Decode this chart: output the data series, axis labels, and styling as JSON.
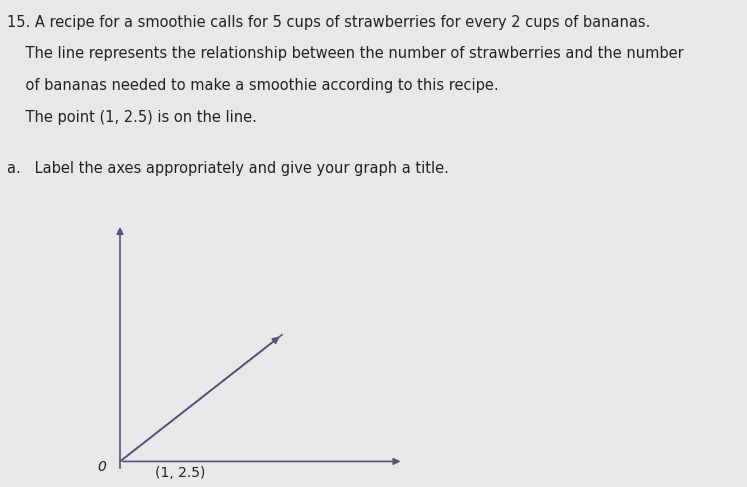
{
  "background_color": "#e8e8e8",
  "line_color": "#555577",
  "text_color": "#222222",
  "slope": 2.5,
  "point_label": "(1, 2.5)",
  "origin_label": "0",
  "problem_text_lines": [
    "15. A recipe for a smoothie calls for 5 cups of strawberries for every 2 cups of bananas.",
    "    The line represents the relationship between the number of strawberries and the number",
    "    of bananas needed to make a smoothie according to this recipe.",
    "    The point (1, 2.5) is on the line."
  ],
  "sub_text": "a.   Label the axes appropriately and give your graph a title.",
  "font_size_body": 10.5,
  "font_size_sub": 10.5,
  "font_size_point": 10,
  "font_size_origin": 10
}
